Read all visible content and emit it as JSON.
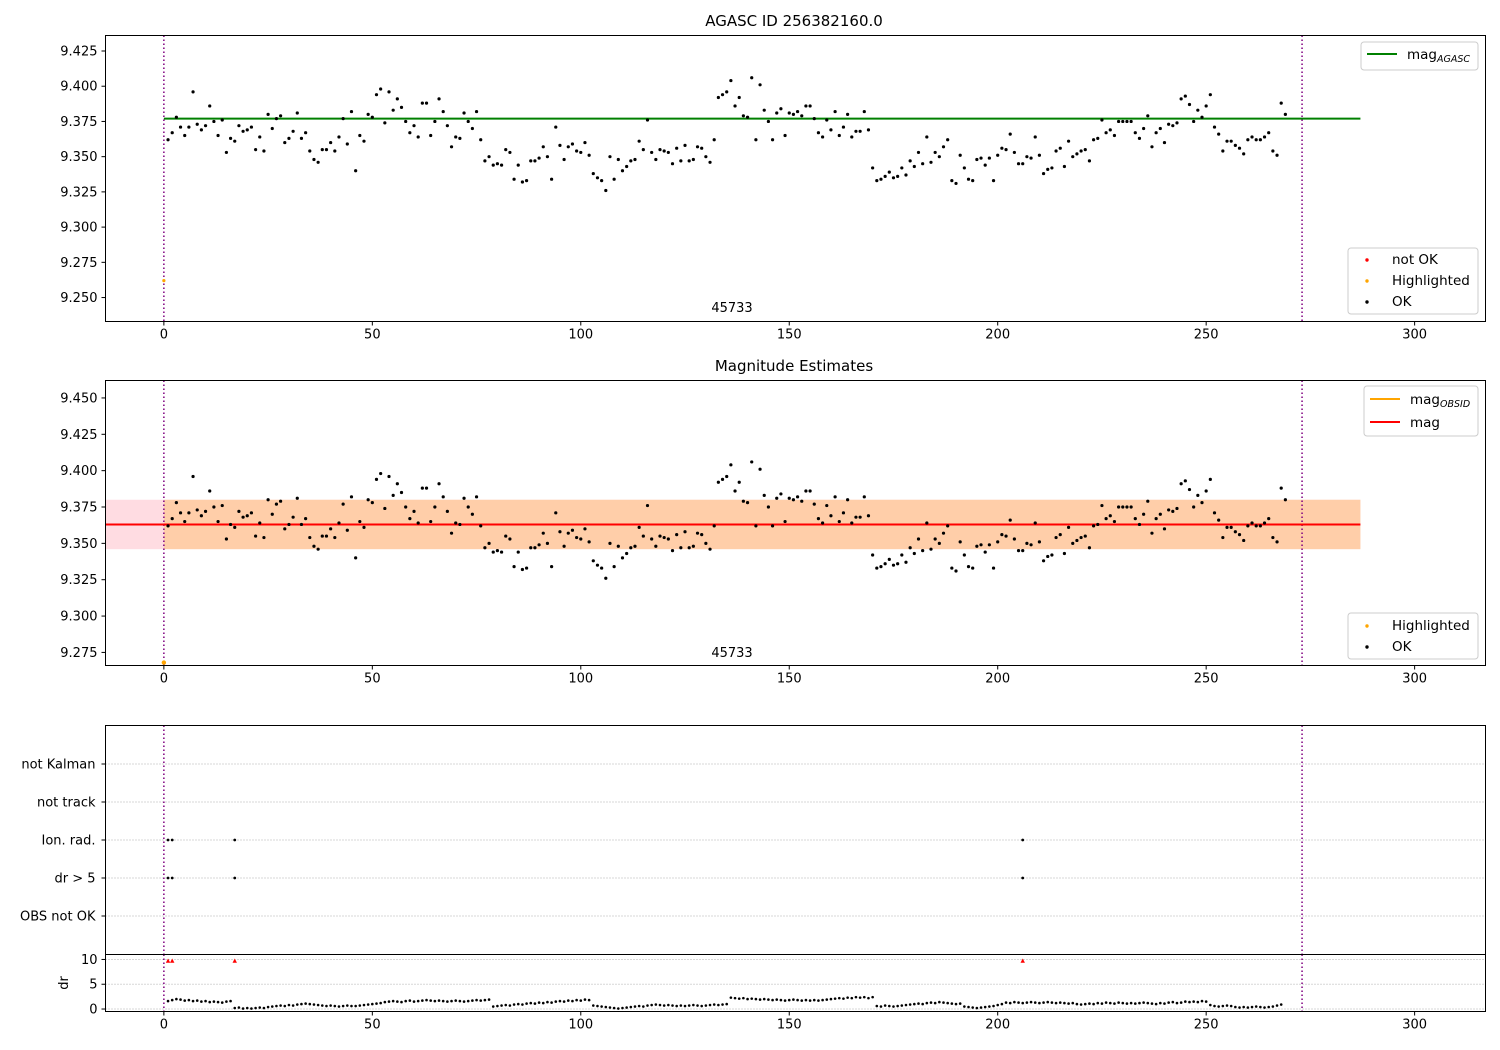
{
  "chart_data": [
    {
      "type": "scatter",
      "title": "AGASC ID 256382160.0",
      "annotation": "45733",
      "xlim": [
        -14,
        317
      ],
      "ylim": [
        9.233,
        9.436
      ],
      "xticks": [
        "0",
        "50",
        "100",
        "150",
        "200",
        "250",
        "300"
      ],
      "yticks": [
        "9.250",
        "9.275",
        "9.300",
        "9.325",
        "9.350",
        "9.375",
        "9.400",
        "9.425"
      ],
      "reference_line": {
        "name": "mag",
        "subscript": "AGASC",
        "value": 9.377,
        "color": "#008000",
        "x_range": [
          0,
          287
        ]
      },
      "vlines": [
        0,
        273
      ],
      "legends": {
        "lines": [
          {
            "label": "mag",
            "subscript": "AGASC",
            "color": "#008000"
          }
        ],
        "points": [
          {
            "label": "not OK",
            "color": "#ff0000"
          },
          {
            "label": "Highlighted",
            "color": "#ffa500"
          },
          {
            "label": "OK",
            "color": "#000000"
          }
        ]
      },
      "highlighted_points": [
        {
          "x": 0,
          "y": 9.262
        }
      ],
      "series": [
        {
          "values": [
            9.362,
            9.367,
            9.378,
            9.371,
            9.365,
            9.371,
            9.396,
            9.373,
            9.369,
            9.372,
            9.386,
            9.375,
            9.365,
            9.376,
            9.353,
            9.363,
            9.361,
            9.372,
            9.368,
            9.369,
            9.371,
            9.355,
            9.364,
            9.354,
            9.38,
            9.37,
            9.377,
            9.379,
            9.36,
            9.363,
            9.368,
            9.381,
            9.363,
            9.367,
            9.354,
            9.348,
            9.346,
            9.355,
            9.355,
            9.36,
            9.354,
            9.364,
            9.377,
            9.359,
            9.382,
            9.34,
            9.365,
            9.361,
            9.38,
            9.378,
            9.394,
            9.398,
            9.374,
            9.396,
            9.383,
            9.391,
            9.385,
            9.375,
            9.367,
            9.372,
            9.364,
            9.388,
            9.388,
            9.365,
            9.375,
            9.391,
            9.382,
            9.372,
            9.357,
            9.364,
            9.363,
            9.381,
            9.375,
            9.37,
            9.382,
            9.362,
            9.347,
            9.35,
            9.344,
            9.345,
            9.344,
            9.355,
            9.353,
            9.334,
            9.344,
            9.332,
            9.333,
            9.347,
            9.347,
            9.349,
            9.357,
            9.35,
            9.334,
            9.371,
            9.358,
            9.348,
            9.357,
            9.359,
            9.354,
            9.353,
            9.36,
            9.351,
            9.338,
            9.335,
            9.333,
            9.326,
            9.35,
            9.334,
            9.348,
            9.34,
            9.343,
            9.347,
            9.348,
            9.361,
            9.355,
            9.376,
            9.353,
            9.348,
            9.355,
            9.354,
            9.353,
            9.345,
            9.356,
            9.347,
            9.358,
            9.347,
            9.348,
            9.357,
            9.356,
            9.35,
            9.346,
            9.362,
            9.392,
            9.394,
            9.396,
            9.404,
            9.386,
            9.392,
            9.379,
            9.378,
            9.406,
            9.362,
            9.401,
            9.383,
            9.375,
            9.362,
            9.381,
            9.384,
            9.365,
            9.381,
            9.38,
            9.382,
            9.379,
            9.386,
            9.386,
            9.377,
            9.367,
            9.364,
            9.376,
            9.369,
            9.382,
            9.365,
            9.371,
            9.38,
            9.364,
            9.368,
            9.368,
            9.382,
            9.369,
            9.342,
            9.333,
            9.334,
            9.336,
            9.339,
            9.335,
            9.336,
            9.342,
            9.337,
            9.347,
            9.343,
            9.353,
            9.345,
            9.364,
            9.346,
            9.353,
            9.35,
            9.357,
            9.362,
            9.333,
            9.331,
            9.351,
            9.342,
            9.334,
            9.333,
            9.348,
            9.349,
            9.344,
            9.349,
            9.333,
            9.351,
            9.356,
            9.355,
            9.366,
            9.353,
            9.345,
            9.345,
            9.35,
            9.349,
            9.364,
            9.351,
            9.338,
            9.341,
            9.342,
            9.354,
            9.356,
            9.343,
            9.361,
            9.35,
            9.352,
            9.354,
            9.355,
            9.347,
            9.362,
            9.363,
            9.376,
            9.367,
            9.369,
            9.365,
            9.375,
            9.375,
            9.375,
            9.375,
            9.367,
            9.363,
            9.37,
            9.379,
            9.357,
            9.367,
            9.37,
            9.36,
            9.373,
            9.372,
            9.374,
            9.391,
            9.393,
            9.387,
            9.375,
            9.383,
            9.378,
            9.386,
            9.394,
            9.371,
            9.366,
            9.354,
            9.361,
            9.361,
            9.358,
            9.356,
            9.352,
            9.362,
            9.364,
            9.362,
            9.362,
            9.364,
            9.367,
            9.354,
            9.351,
            9.388,
            9.38
          ]
        }
      ]
    },
    {
      "type": "scatter",
      "title": "Magnitude Estimates",
      "annotation": "45733",
      "xlim": [
        -14,
        317
      ],
      "ylim": [
        9.266,
        9.462
      ],
      "xticks": [
        "0",
        "50",
        "100",
        "150",
        "200",
        "250",
        "300"
      ],
      "yticks": [
        "9.275",
        "9.300",
        "9.325",
        "9.350",
        "9.375",
        "9.400",
        "9.425",
        "9.450"
      ],
      "reference_line": {
        "name": "mag",
        "value": 9.363,
        "color": "#ff0000",
        "x_range": [
          -14,
          287
        ]
      },
      "bands": [
        {
          "x_range": [
            -14,
            287
          ],
          "y_range": [
            9.346,
            9.38
          ],
          "color": "#ffc0cb"
        },
        {
          "x_range": [
            0,
            287
          ],
          "y_range": [
            9.346,
            9.38
          ],
          "color": "#ffa500"
        }
      ],
      "vlines": [
        0,
        273
      ],
      "legends": {
        "lines": [
          {
            "label": "mag",
            "subscript": "OBSID",
            "color": "#ffa500"
          },
          {
            "label": "mag",
            "subscript": "",
            "color": "#ff0000"
          }
        ],
        "points": [
          {
            "label": "Highlighted",
            "color": "#ffa500"
          },
          {
            "label": "OK",
            "color": "#000000"
          }
        ]
      },
      "highlighted_points": [
        {
          "x": 0,
          "y": 9.268
        }
      ]
    },
    {
      "type": "scatter",
      "xlim": [
        -14,
        317
      ],
      "categories": [
        "not Kalman",
        "not track",
        "Ion. rad.",
        "dr > 5",
        "OBS not OK"
      ],
      "flag_points": {
        "Ion. rad.": [
          1,
          2,
          17,
          206
        ],
        "dr > 5": [
          1,
          2,
          17,
          206
        ]
      },
      "vlines": [
        0,
        273
      ]
    },
    {
      "type": "scatter",
      "ylabel": "dr",
      "ylim": [
        -0.5,
        11
      ],
      "yticks": [
        "0",
        "5",
        "10"
      ],
      "xlim": [
        -14,
        317
      ],
      "xticks": [
        "0",
        "50",
        "100",
        "150",
        "200",
        "250",
        "300"
      ],
      "not_ok_points": [
        {
          "x": 1,
          "y": 9.7
        },
        {
          "x": 2,
          "y": 9.7
        },
        {
          "x": 17,
          "y": 9.7
        },
        {
          "x": 206,
          "y": 9.7
        }
      ],
      "series": [
        {
          "values": [
            1.6,
            1.8,
            2.0,
            1.9,
            1.7,
            1.8,
            1.6,
            1.7,
            1.5,
            1.6,
            1.4,
            1.5,
            1.4,
            1.3,
            1.5,
            1.6,
            0.2,
            0.3,
            0.1,
            0.2,
            0.1,
            0.2,
            0.3,
            0.2,
            0.4,
            0.5,
            0.6,
            0.7,
            0.6,
            0.8,
            0.7,
            0.9,
            1.0,
            1.1,
            1.0,
            0.9,
            0.8,
            0.7,
            0.6,
            0.7,
            0.6,
            0.5,
            0.6,
            0.7,
            0.6,
            0.6,
            0.7,
            0.8,
            0.9,
            1.0,
            1.1,
            1.2,
            1.4,
            1.5,
            1.6,
            1.5,
            1.4,
            1.6,
            1.7,
            1.5,
            1.6,
            1.7,
            1.8,
            1.7,
            1.6,
            1.7,
            1.6,
            1.5,
            1.6,
            1.7,
            1.6,
            1.5,
            1.6,
            1.7,
            1.8,
            1.7,
            1.8,
            1.9,
            0.5,
            0.6,
            0.7,
            0.8,
            0.7,
            0.9,
            1.0,
            0.9,
            1.1,
            1.2,
            1.1,
            1.3,
            1.2,
            1.4,
            1.3,
            1.5,
            1.6,
            1.5,
            1.7,
            1.6,
            1.8,
            1.7,
            1.9,
            1.8,
            0.7,
            0.6,
            0.5,
            0.4,
            0.3,
            0.2,
            0.1,
            0.2,
            0.3,
            0.4,
            0.5,
            0.6,
            0.5,
            0.7,
            0.8,
            0.9,
            0.8,
            0.7,
            0.8,
            0.7,
            0.6,
            0.7,
            0.6,
            0.7,
            0.8,
            0.7,
            0.6,
            0.7,
            0.8,
            0.9,
            0.8,
            0.9,
            1.0,
            2.3,
            2.2,
            2.1,
            2.2,
            2.0,
            2.1,
            2.0,
            1.9,
            2.0,
            1.9,
            1.8,
            1.9,
            1.8,
            1.7,
            1.8,
            1.9,
            1.8,
            1.7,
            1.8,
            1.7,
            1.8,
            1.7,
            1.8,
            1.9,
            2.0,
            2.1,
            2.2,
            2.1,
            2.3,
            2.2,
            2.4,
            2.3,
            2.4,
            2.2,
            2.4,
            0.6,
            0.5,
            0.7,
            0.6,
            0.5,
            0.6,
            0.7,
            0.8,
            0.9,
            1.0,
            1.1,
            1.0,
            1.2,
            1.3,
            1.2,
            1.4,
            1.3,
            1.2,
            1.1,
            1.0,
            1.1,
            0.5,
            0.4,
            0.3,
            0.2,
            0.3,
            0.4,
            0.5,
            0.6,
            0.8,
            1.0,
            1.3,
            1.2,
            1.4,
            1.3,
            1.2,
            1.3,
            1.4,
            1.3,
            1.2,
            1.3,
            1.4,
            1.3,
            1.2,
            1.3,
            1.2,
            1.1,
            1.2,
            1.0,
            0.9,
            1.0,
            1.1,
            1.0,
            1.2,
            1.1,
            1.3,
            1.2,
            1.1,
            1.3,
            1.2,
            1.1,
            1.2,
            1.1,
            1.2,
            1.3,
            1.2,
            1.1,
            1.0,
            1.2,
            1.1,
            1.3,
            1.4,
            1.2,
            1.3,
            1.5,
            1.4,
            1.5,
            1.4,
            1.6,
            1.5,
            0.8,
            0.6,
            0.5,
            0.6,
            0.7,
            0.6,
            0.4,
            0.3,
            0.4,
            0.3,
            0.4,
            0.5,
            0.4,
            0.3,
            0.4,
            0.5,
            0.7,
            0.9
          ]
        }
      ]
    }
  ]
}
